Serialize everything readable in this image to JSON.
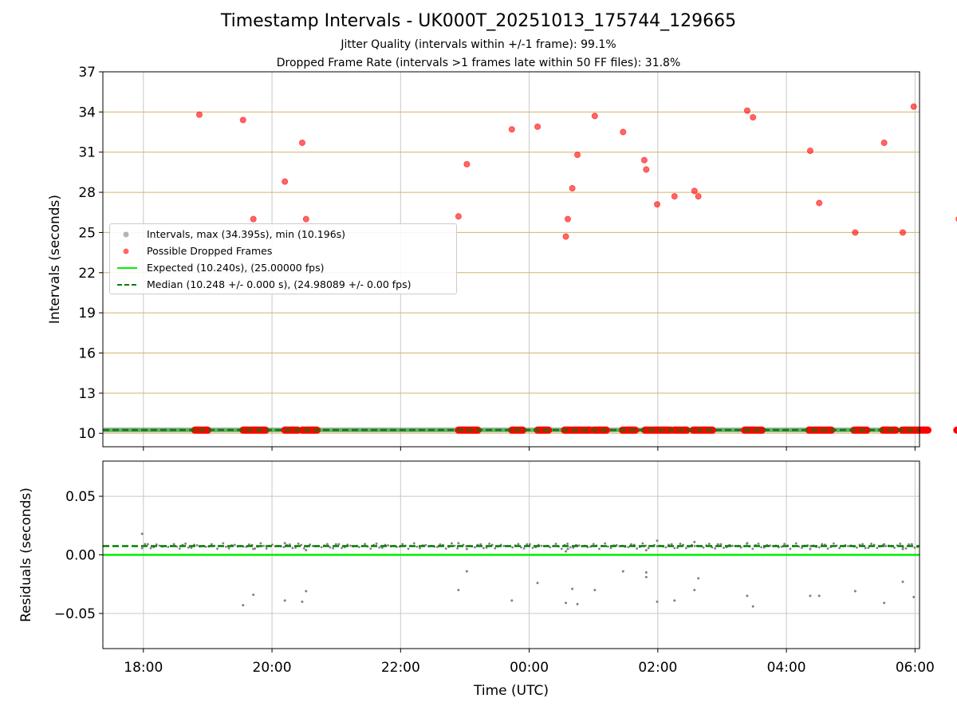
{
  "figure": {
    "title": "Timestamp Intervals - UK000T_20251013_175744_129665",
    "subtitle1": "Jitter Quality (intervals within +/-1 frame): 99.1%",
    "subtitle2": "Dropped Frame Rate (intervals >1 frames late within 50 FF files): 31.8%"
  },
  "colors": {
    "intervals": "#808080",
    "dropped": "#ff0000",
    "expected": "#00ee00",
    "median": "#008000",
    "hgrid_top": "#d4b36a",
    "grid": "#c8c8c8"
  },
  "legend": {
    "intervals": "Intervals, max (34.395s), min (10.196s)",
    "dropped": "Possible Dropped Frames",
    "expected": "Expected (10.240s), (25.00000 fps)",
    "median": "Median (10.248 +/- 0.000 s), (24.98089 +/- 0.00 fps)"
  },
  "chart_data": [
    {
      "type": "scatter",
      "panel": "top",
      "ylabel": "Intervals (seconds)",
      "xlabel": "",
      "x_unit": "hours since 18:00 UTC",
      "xlim": [
        -0.63,
        12.07
      ],
      "ylim": [
        9,
        37
      ],
      "x_ticks": [
        0,
        2,
        4,
        6,
        8,
        10,
        12
      ],
      "y_ticks": [
        10,
        13,
        16,
        19,
        22,
        25,
        28,
        31,
        34,
        37
      ],
      "y_tick_labels": [
        "10",
        "13",
        "16",
        "19",
        "22",
        "25",
        "28",
        "31",
        "34",
        "37"
      ],
      "expected_line": 10.24,
      "median_line": 10.248,
      "series": [
        {
          "name": "Intervals",
          "x_start": -0.62,
          "x_end": 12.07,
          "y": 10.248
        },
        {
          "name": "Possible Dropped Frames",
          "high_points": [
            [
              0.87,
              33.8
            ],
            [
              1.55,
              33.4
            ],
            [
              1.71,
              26.0
            ],
            [
              2.2,
              28.8
            ],
            [
              2.47,
              31.7
            ],
            [
              2.53,
              26.0
            ],
            [
              4.9,
              26.2
            ],
            [
              5.03,
              30.1
            ],
            [
              5.73,
              32.7
            ],
            [
              6.13,
              32.9
            ],
            [
              6.57,
              24.7
            ],
            [
              6.6,
              26.0
            ],
            [
              6.67,
              28.3
            ],
            [
              6.75,
              30.8
            ],
            [
              7.02,
              33.7
            ],
            [
              7.46,
              32.5
            ],
            [
              7.79,
              30.4
            ],
            [
              7.82,
              29.7
            ],
            [
              7.99,
              27.1
            ],
            [
              8.26,
              27.7
            ],
            [
              8.57,
              28.1
            ],
            [
              8.63,
              27.7
            ],
            [
              9.39,
              34.1
            ],
            [
              9.48,
              33.6
            ],
            [
              10.37,
              31.1
            ],
            [
              10.51,
              27.2
            ],
            [
              11.07,
              25.0
            ],
            [
              11.52,
              31.7
            ],
            [
              11.81,
              25.0
            ],
            [
              11.98,
              34.4
            ],
            [
              12.68,
              26.0
            ]
          ],
          "base_clusters": [
            [
              0.8,
              1.0
            ],
            [
              1.55,
              1.9
            ],
            [
              2.2,
              2.4
            ],
            [
              2.47,
              2.7
            ],
            [
              4.9,
              5.2
            ],
            [
              5.73,
              5.9
            ],
            [
              6.13,
              6.3
            ],
            [
              6.55,
              6.95
            ],
            [
              7.0,
              7.2
            ],
            [
              7.45,
              7.65
            ],
            [
              7.8,
              8.2
            ],
            [
              8.25,
              8.45
            ],
            [
              8.55,
              8.85
            ],
            [
              9.35,
              9.62
            ],
            [
              10.35,
              10.7
            ],
            [
              11.05,
              11.25
            ],
            [
              11.5,
              11.7
            ],
            [
              11.8,
              12.2
            ],
            [
              12.65,
              12.85
            ]
          ],
          "y": 10.24
        }
      ]
    },
    {
      "type": "scatter",
      "panel": "bottom",
      "ylabel": "Residuals (seconds)",
      "xlabel": "Time (UTC)",
      "x_unit": "hours since 18:00 UTC",
      "xlim": [
        -0.63,
        12.07
      ],
      "ylim": [
        -0.08,
        0.08
      ],
      "x_ticks": [
        0,
        2,
        4,
        6,
        8,
        10,
        12
      ],
      "x_tick_labels": [
        "18:00",
        "20:00",
        "22:00",
        "00:00",
        "02:00",
        "04:00",
        "06:00"
      ],
      "y_ticks": [
        0.05,
        0.0,
        -0.05
      ],
      "y_tick_labels": [
        "0.05",
        "0.00",
        "−0.05"
      ],
      "expected_line": 0.0,
      "median_line": 0.0075,
      "band_y": 0.0075,
      "outliers": [
        [
          -0.02,
          0.018
        ],
        [
          1.55,
          -0.043
        ],
        [
          1.71,
          -0.034
        ],
        [
          2.2,
          -0.039
        ],
        [
          2.47,
          -0.04
        ],
        [
          2.53,
          -0.031
        ],
        [
          4.9,
          -0.03
        ],
        [
          5.03,
          -0.014
        ],
        [
          5.73,
          -0.039
        ],
        [
          6.13,
          -0.024
        ],
        [
          6.57,
          -0.041
        ],
        [
          6.67,
          -0.029
        ],
        [
          6.75,
          -0.042
        ],
        [
          7.02,
          -0.03
        ],
        [
          7.46,
          -0.014
        ],
        [
          7.82,
          -0.015
        ],
        [
          7.82,
          -0.019
        ],
        [
          7.99,
          -0.04
        ],
        [
          8.26,
          -0.039
        ],
        [
          8.57,
          -0.03
        ],
        [
          8.63,
          -0.02
        ],
        [
          9.39,
          -0.035
        ],
        [
          9.48,
          -0.044
        ],
        [
          10.37,
          -0.035
        ],
        [
          10.51,
          -0.035
        ],
        [
          11.07,
          -0.031
        ],
        [
          11.52,
          -0.041
        ],
        [
          11.81,
          -0.023
        ],
        [
          11.98,
          -0.036
        ],
        [
          12.68,
          -0.04
        ],
        [
          2.53,
          0.004
        ],
        [
          5.03,
          0.005
        ],
        [
          6.57,
          0.003
        ],
        [
          6.6,
          0.005
        ],
        [
          1.71,
          0.005
        ],
        [
          7.99,
          0.012
        ],
        [
          8.57,
          0.011
        ],
        [
          9.39,
          0.01
        ],
        [
          12.68,
          0.011
        ],
        [
          4.9,
          0.01
        ],
        [
          2.2,
          0.01
        ],
        [
          7.82,
          0.004
        ],
        [
          10.37,
          0.005
        ],
        [
          11.52,
          0.009
        ],
        [
          11.81,
          0.005
        ]
      ]
    }
  ]
}
